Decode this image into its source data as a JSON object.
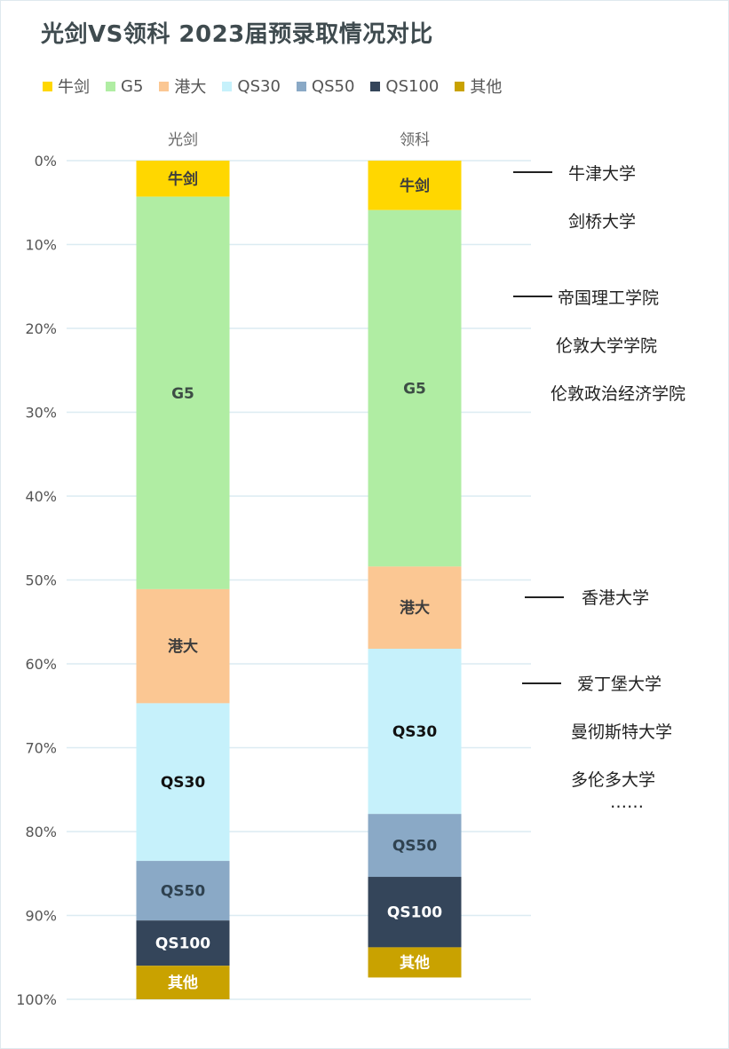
{
  "title": "光剑VS领科 2023届预录取情况对比",
  "chart_data": {
    "type": "bar",
    "stacked": true,
    "percent_axis": true,
    "categories": [
      "光剑",
      "领科"
    ],
    "y_ticks": [
      "0%",
      "10%",
      "20%",
      "30%",
      "40%",
      "50%",
      "60%",
      "70%",
      "80%",
      "90%",
      "100%"
    ],
    "ylim": [
      0,
      100
    ],
    "y_inverted": true,
    "grid": true,
    "legend_position": "top-left",
    "series": [
      {
        "name": "牛剑",
        "color": "#ffd700",
        "label_color": "#3d3d3d",
        "values": [
          4.3,
          5.9
        ]
      },
      {
        "name": "G5",
        "color": "#b0eda3",
        "label_color": "#3d4d45",
        "values": [
          46.8,
          42.5
        ]
      },
      {
        "name": "港大",
        "color": "#fbc793",
        "label_color": "#3d3d3d",
        "values": [
          13.6,
          9.8
        ]
      },
      {
        "name": "QS30",
        "color": "#c6f1fb",
        "label_color": "#111111",
        "values": [
          18.8,
          19.7
        ]
      },
      {
        "name": "QS50",
        "color": "#8aa9c6",
        "label_color": "#2f4250",
        "values": [
          7.1,
          7.5
        ]
      },
      {
        "name": "QS100",
        "color": "#34455a",
        "label_color": "#ffffff",
        "values": [
          5.4,
          8.4
        ]
      },
      {
        "name": "其他",
        "color": "#c9a200",
        "label_color": "#ffffff",
        "values": [
          4.0,
          3.6
        ]
      }
    ]
  },
  "annotations": {
    "group1": [
      "牛津大学",
      "剑桥大学"
    ],
    "group2": [
      "帝国理工学院",
      "伦敦大学学院",
      "伦敦政治经济学院"
    ],
    "group3": [
      "香港大学"
    ],
    "group4": [
      "爱丁堡大学",
      "曼彻斯特大学",
      "多伦多大学",
      "……"
    ]
  }
}
